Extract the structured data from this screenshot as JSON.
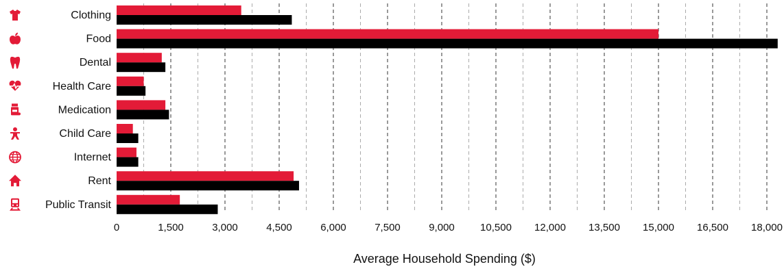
{
  "chart_data": {
    "type": "bar",
    "orientation": "horizontal",
    "title": "",
    "xlabel": "Average Household Spending ($)",
    "ylabel": "",
    "xlim": [
      0,
      18000
    ],
    "x_ticks": [
      0,
      1500,
      3000,
      4500,
      6000,
      7500,
      9000,
      10500,
      12000,
      13500,
      15000,
      16500,
      18000
    ],
    "x_tick_labels": [
      "0",
      "1,500",
      "3,000",
      "4,500",
      "6,000",
      "7,500",
      "9,000",
      "10,500",
      "12,000",
      "13,500",
      "15,000",
      "16,500",
      "18,000"
    ],
    "grid": "vertical dashed",
    "legend": "none",
    "categories": [
      "Clothing",
      "Food",
      "Dental",
      "Health Care",
      "Medication",
      "Child Care",
      "Internet",
      "Rent",
      "Public Transit"
    ],
    "category_icons": [
      "shirt-icon",
      "apple-icon",
      "tooth-icon",
      "heartbeat-icon",
      "pill-bottle-icon",
      "child-icon",
      "globe-icon",
      "house-icon",
      "train-icon"
    ],
    "series": [
      {
        "color": "#e31b37",
        "values": [
          3450,
          15000,
          1250,
          750,
          1350,
          450,
          550,
          4900,
          1750
        ]
      },
      {
        "color": "#000000",
        "values": [
          4850,
          18300,
          1350,
          800,
          1450,
          600,
          600,
          5050,
          2800
        ]
      }
    ]
  }
}
